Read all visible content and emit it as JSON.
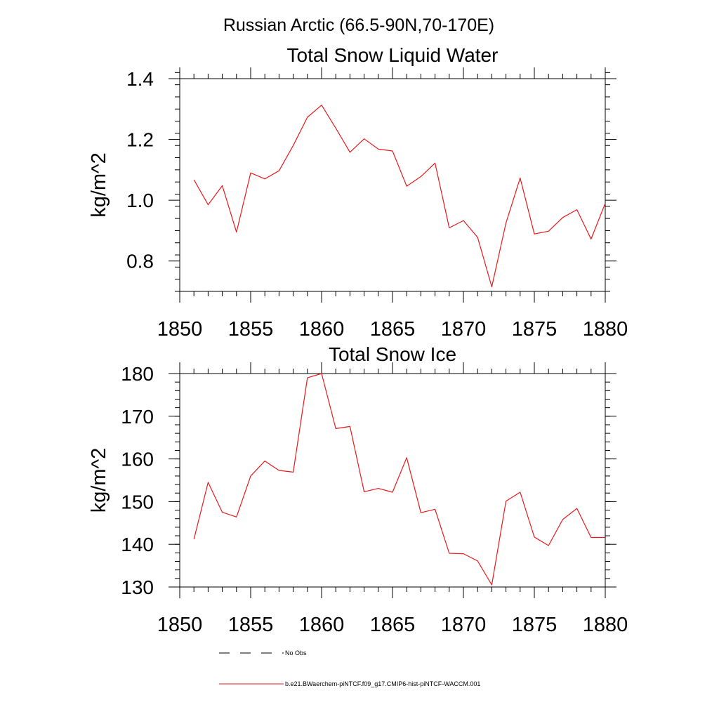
{
  "figure_title": "Russian Arctic (66.5-90N,70-170E)",
  "series_color": "#e8191c",
  "chart_data": [
    {
      "type": "line",
      "title": "Total Snow Liquid Water",
      "ylabel": "kg/m^2",
      "xlim": [
        1850,
        1880
      ],
      "ylim": [
        0.7,
        1.4
      ],
      "xticks": [
        1850,
        1855,
        1860,
        1865,
        1870,
        1875,
        1880
      ],
      "xtick_labels": [
        "1850",
        "1855",
        "1860",
        "1865",
        "1870",
        "1875",
        "1880"
      ],
      "yticks": [
        0.8,
        1.0,
        1.2,
        1.4
      ],
      "ytick_labels": [
        "0.8",
        "1.0",
        "1.2",
        "1.4"
      ],
      "ytick_minor_step": 0.04,
      "x": [
        1851,
        1852,
        1853,
        1854,
        1855,
        1856,
        1857,
        1858,
        1859,
        1860,
        1861,
        1862,
        1863,
        1864,
        1865,
        1866,
        1867,
        1868,
        1869,
        1870,
        1871,
        1872,
        1873,
        1874,
        1875,
        1876,
        1877,
        1878,
        1879,
        1880
      ],
      "series": [
        {
          "name": "b.e21.BWaerchem-piNTCF.f09_g17.CMIP6-hist-piNTCF-WACCM.001",
          "values": [
            1.067,
            0.985,
            1.048,
            0.895,
            1.09,
            1.07,
            1.097,
            1.18,
            1.273,
            1.313,
            1.237,
            1.158,
            1.202,
            1.168,
            1.162,
            1.046,
            1.078,
            1.122,
            0.909,
            0.933,
            0.878,
            0.715,
            0.925,
            1.073,
            0.889,
            0.898,
            0.943,
            0.969,
            0.872,
            0.99
          ]
        }
      ]
    },
    {
      "type": "line",
      "title": "Total Snow Ice",
      "ylabel": "kg/m^2",
      "xlim": [
        1850,
        1880
      ],
      "ylim": [
        130,
        180
      ],
      "xticks": [
        1850,
        1855,
        1860,
        1865,
        1870,
        1875,
        1880
      ],
      "xtick_labels": [
        "1850",
        "1855",
        "1860",
        "1865",
        "1870",
        "1875",
        "1880"
      ],
      "yticks": [
        130,
        140,
        150,
        160,
        170,
        180
      ],
      "ytick_labels": [
        "130",
        "140",
        "150",
        "160",
        "170",
        "180"
      ],
      "ytick_minor_step": 2,
      "x": [
        1851,
        1852,
        1853,
        1854,
        1855,
        1856,
        1857,
        1858,
        1859,
        1860,
        1861,
        1862,
        1863,
        1864,
        1865,
        1866,
        1867,
        1868,
        1869,
        1870,
        1871,
        1872,
        1873,
        1874,
        1875,
        1876,
        1877,
        1878,
        1879,
        1880
      ],
      "series": [
        {
          "name": "b.e21.BWaerchem-piNTCF.f09_g17.CMIP6-hist-piNTCF-WACCM.001",
          "values": [
            141.2,
            154.5,
            147.5,
            146.4,
            156.0,
            159.5,
            157.3,
            156.9,
            179.0,
            180.0,
            167.1,
            167.6,
            152.3,
            153.1,
            152.2,
            160.3,
            147.4,
            148.2,
            137.9,
            137.8,
            136.1,
            130.5,
            150.1,
            152.2,
            141.7,
            139.7,
            145.8,
            148.4,
            141.6,
            141.6
          ]
        }
      ]
    }
  ],
  "legend": {
    "placement": "bottom",
    "items": [
      {
        "label": "No Obs",
        "style": "dashed",
        "color": "#000000"
      },
      {
        "label": "b.e21.BWaerchem-piNTCF.f09_g17.CMIP6-hist-piNTCF-WACCM.001",
        "style": "solid",
        "color": "#e8191c"
      }
    ]
  }
}
